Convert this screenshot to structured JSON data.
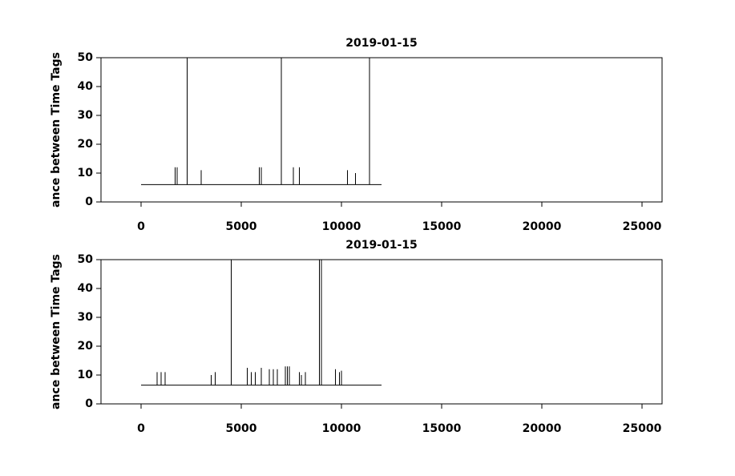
{
  "chart_data": [
    {
      "type": "line",
      "title": "2019-01-15",
      "y_label": "ance between Time Tags",
      "xlim": [
        -2000,
        26000
      ],
      "ylim": [
        0,
        50
      ],
      "xticks": [
        0,
        5000,
        10000,
        15000,
        20000,
        25000
      ],
      "yticks": [
        0,
        10,
        20,
        30,
        40,
        50
      ],
      "x": [
        0,
        1700,
        1700,
        1700,
        1800,
        1800,
        1800,
        2300,
        2300,
        2300,
        3000,
        3000,
        3000,
        5900,
        5900,
        5900,
        6000,
        6000,
        6000,
        7000,
        7000,
        7000,
        7600,
        7600,
        7600,
        7900,
        7900,
        7900,
        10300,
        10300,
        10300,
        10700,
        10700,
        10700,
        11400,
        11400,
        11400,
        12000
      ],
      "series": [
        {
          "color": "#000000",
          "values": [
            6,
            6,
            12,
            6,
            6,
            12,
            6,
            6,
            50,
            6,
            6,
            11,
            6,
            6,
            12,
            6,
            6,
            12,
            6,
            6,
            50,
            6,
            6,
            12,
            6,
            6,
            12,
            6,
            6,
            11,
            6,
            6,
            10,
            6,
            6,
            50,
            6,
            6
          ]
        }
      ]
    },
    {
      "type": "line",
      "title": "2019-01-15",
      "y_label": "ance between Time Tags",
      "xlim": [
        -2000,
        26000
      ],
      "ylim": [
        0,
        50
      ],
      "xticks": [
        0,
        5000,
        10000,
        15000,
        20000,
        25000
      ],
      "yticks": [
        0,
        10,
        20,
        30,
        40,
        50
      ],
      "x": [
        0,
        800,
        800,
        800,
        1000,
        1000,
        1000,
        1200,
        1200,
        1200,
        3500,
        3500,
        3500,
        3700,
        3700,
        3700,
        4500,
        4500,
        4500,
        5300,
        5300,
        5300,
        5500,
        5500,
        5500,
        5700,
        5700,
        5700,
        6000,
        6000,
        6000,
        6400,
        6400,
        6400,
        6600,
        6600,
        6600,
        6800,
        6800,
        6800,
        7200,
        7200,
        7200,
        7300,
        7300,
        7300,
        7400,
        7400,
        7400,
        7900,
        7900,
        7900,
        8000,
        8000,
        8000,
        8200,
        8200,
        8200,
        8900,
        8900,
        8900,
        9000,
        9000,
        9000,
        9700,
        9700,
        9700,
        9900,
        9900,
        9900,
        10000,
        10000,
        10000,
        12000
      ],
      "series": [
        {
          "color": "#000000",
          "values": [
            6.5,
            6.5,
            11,
            6.5,
            6.5,
            11,
            6.5,
            6.5,
            11,
            6.5,
            6.5,
            10,
            6.5,
            6.5,
            11,
            6.5,
            6.5,
            50,
            6.5,
            6.5,
            12.5,
            6.5,
            6.5,
            11,
            6.5,
            6.5,
            11,
            6.5,
            6.5,
            12.5,
            6.5,
            6.5,
            12,
            6.5,
            6.5,
            12,
            6.5,
            6.5,
            12,
            6.5,
            6.5,
            13,
            6.5,
            6.5,
            13,
            6.5,
            6.5,
            13,
            6.5,
            6.5,
            11,
            6.5,
            6.5,
            10,
            6.5,
            6.5,
            11,
            6.5,
            6.5,
            50,
            6.5,
            6.5,
            50,
            6.5,
            6.5,
            12,
            6.5,
            6.5,
            11,
            6.5,
            6.5,
            11.5,
            6.5,
            6.5
          ]
        }
      ]
    }
  ]
}
